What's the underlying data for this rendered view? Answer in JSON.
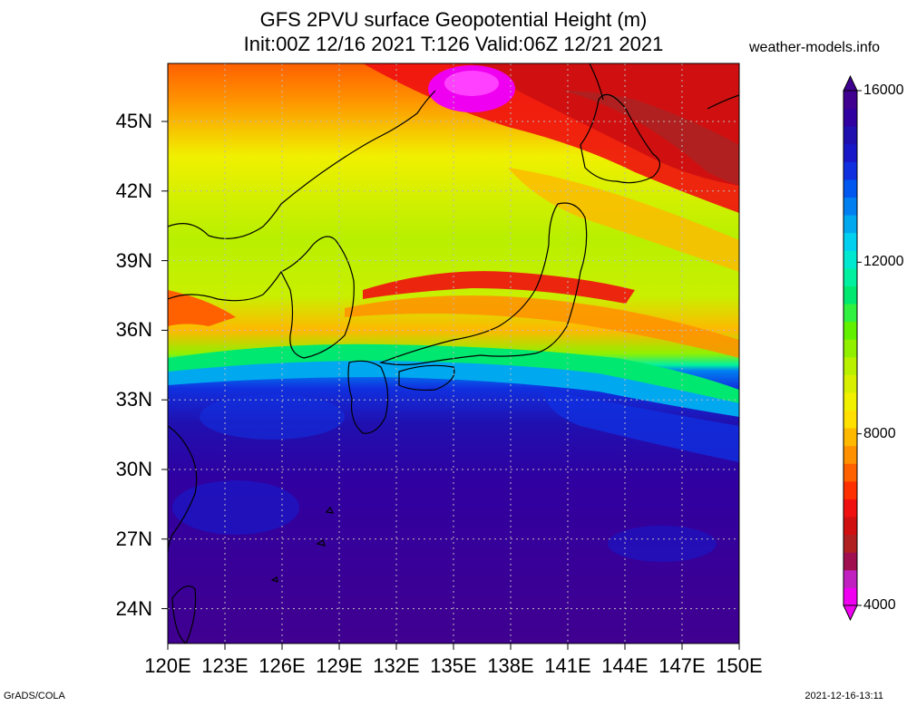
{
  "title": {
    "line1": "GFS 2PVU surface Geopotential Height (m)",
    "line2": "Init:00Z 12/16 2021 T:126 Valid:06Z 12/21 2021"
  },
  "site": "weather-models.info",
  "footer": {
    "left": "GrADS/COLA",
    "right": "2021-12-16-13:11"
  },
  "map": {
    "lon_range": [
      120,
      150
    ],
    "lat_range": [
      22.5,
      47.5
    ],
    "lat_ticks": [
      "24N",
      "27N",
      "30N",
      "33N",
      "36N",
      "39N",
      "42N",
      "45N"
    ],
    "lat_values": [
      24,
      27,
      30,
      33,
      36,
      39,
      42,
      45
    ],
    "lon_ticks": [
      "120E",
      "123E",
      "126E",
      "129E",
      "132E",
      "135E",
      "138E",
      "141E",
      "144E",
      "147E",
      "150E"
    ],
    "lon_values": [
      120,
      123,
      126,
      129,
      132,
      135,
      138,
      141,
      144,
      147,
      150
    ],
    "grid": "dotted"
  },
  "colorbar": {
    "min": 4000,
    "max": 16000,
    "labels": [
      "16000",
      "12000",
      "8000",
      "4000"
    ],
    "label_values": [
      16000,
      12000,
      8000,
      4000
    ],
    "colors": [
      "#f000f0",
      "#c020c0",
      "#a01050",
      "#b02020",
      "#d01010",
      "#f01010",
      "#ff3000",
      "#ff6000",
      "#ff9000",
      "#ffb800",
      "#ffe000",
      "#f0f000",
      "#d8f000",
      "#b8f000",
      "#90f000",
      "#60f000",
      "#30f040",
      "#00e870",
      "#00f0a0",
      "#00e8d0",
      "#00d0f0",
      "#00a8f0",
      "#0080f0",
      "#0058f0",
      "#1030e0",
      "#1818c8",
      "#2010b0",
      "#3000a0",
      "#400090"
    ]
  }
}
